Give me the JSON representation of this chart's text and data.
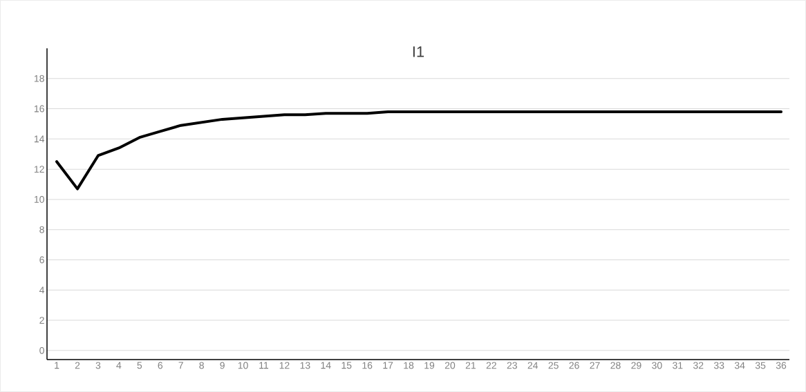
{
  "chart_data": {
    "type": "line",
    "title": "I1",
    "categories": [
      "1",
      "2",
      "3",
      "4",
      "5",
      "6",
      "7",
      "8",
      "9",
      "10",
      "11",
      "12",
      "13",
      "14",
      "15",
      "16",
      "17",
      "18",
      "19",
      "20",
      "21",
      "22",
      "23",
      "24",
      "25",
      "26",
      "27",
      "28",
      "29",
      "30",
      "31",
      "32",
      "33",
      "34",
      "35",
      "36"
    ],
    "series": [
      {
        "color": "#000000",
        "values": [
          12.5,
          10.7,
          12.9,
          13.4,
          14.1,
          14.5,
          14.9,
          15.1,
          15.3,
          15.4,
          15.5,
          15.6,
          15.6,
          15.7,
          15.7,
          15.7,
          15.8,
          15.8,
          15.8,
          15.8,
          15.8,
          15.8,
          15.8,
          15.8,
          15.8,
          15.8,
          15.8,
          15.8,
          15.8,
          15.8,
          15.8,
          15.8,
          15.8,
          15.8,
          15.8,
          15.8
        ]
      }
    ],
    "ylim": [
      -0.6,
      20
    ],
    "yticks": [
      0,
      2,
      4,
      6,
      8,
      10,
      12,
      14,
      16,
      18
    ],
    "grid": "y"
  }
}
